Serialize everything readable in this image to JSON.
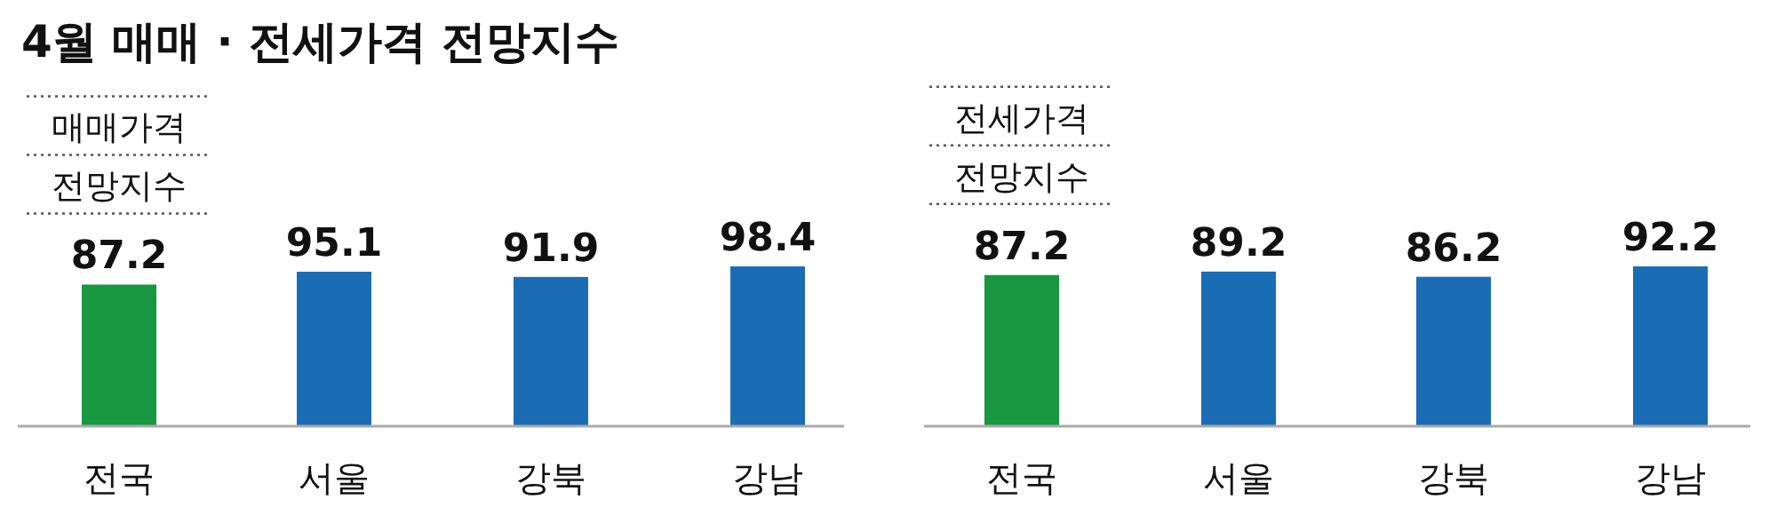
{
  "chart_data": [
    {
      "type": "bar",
      "title": "4월 매매 · 전세가격 전망지수",
      "categories": [
        "전국",
        "서울",
        "강북",
        "강남"
      ],
      "values": [
        87.2,
        95.1,
        91.9,
        98.4
      ],
      "colors": [
        "#17973f",
        "#1a6db5",
        "#1a6db5",
        "#1a6db5"
      ],
      "data_labels": true,
      "annotations": [
        {
          "text": "매매가격 전망지수",
          "x": "전국",
          "y": 87.2
        }
      ]
    },
    {
      "type": "bar",
      "categories": [
        "전국",
        "서울",
        "강북",
        "강남"
      ],
      "values": [
        87.2,
        89.2,
        86.2,
        92.2
      ],
      "colors": [
        "#17973f",
        "#1a6db5",
        "#1a6db5",
        "#1a6db5"
      ],
      "data_labels": true,
      "annotations": [
        {
          "text": "전세가격 전망지수",
          "x": "전국",
          "y": 87.2
        }
      ]
    }
  ]
}
